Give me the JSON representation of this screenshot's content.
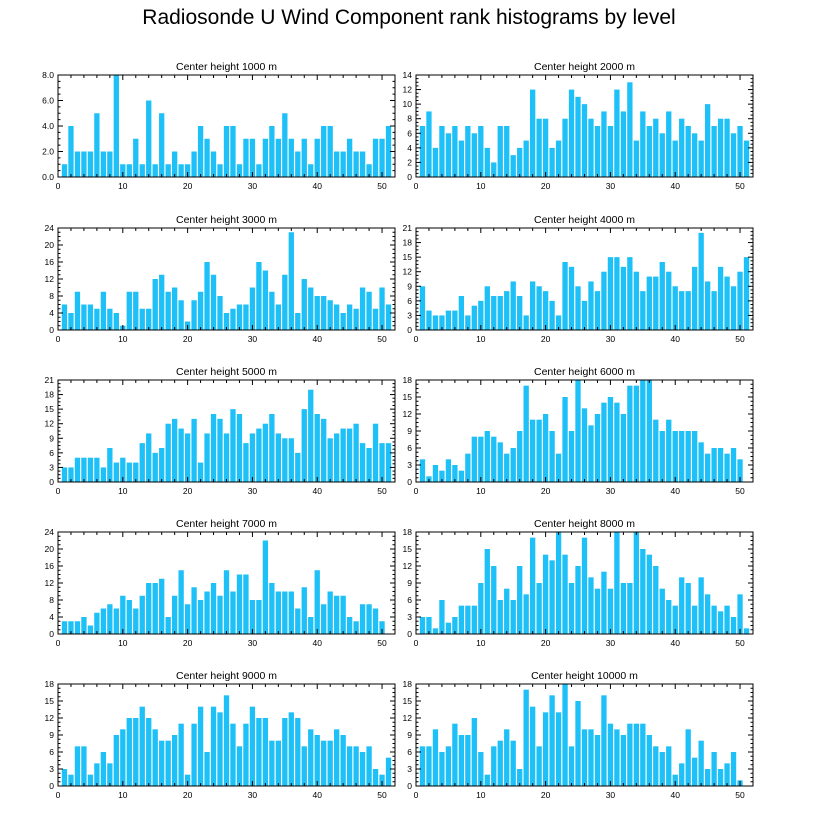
{
  "figure": {
    "title": "Radiosonde U Wind Component rank histograms by level"
  },
  "colors": {
    "bar": "#1EC0F8",
    "axis": "#000000",
    "background": "#FFFFFF"
  },
  "chart_data": [
    {
      "type": "bar",
      "title": "Center height 1000 m",
      "xlim": [
        0,
        52
      ],
      "ylim": [
        0,
        8
      ],
      "xticks": [
        0,
        10,
        20,
        30,
        40,
        50
      ],
      "yticks": [
        0,
        2,
        4,
        6,
        8
      ],
      "ytick_labels": [
        "0.0",
        "2.0",
        "4.0",
        "6.0",
        "8.0"
      ],
      "x_start": 1,
      "values": [
        1,
        4,
        2,
        2,
        2,
        5,
        2,
        2,
        8,
        1,
        1,
        3,
        1,
        6,
        1,
        5,
        1,
        2,
        1,
        1,
        2,
        4,
        3,
        2,
        1,
        4,
        4,
        1,
        3,
        3,
        1,
        3,
        4,
        3,
        5,
        3,
        2,
        3,
        1,
        3,
        4,
        4,
        2,
        2,
        3,
        2,
        2,
        1,
        3,
        3,
        4
      ]
    },
    {
      "type": "bar",
      "title": "Center height 2000 m",
      "xlim": [
        0,
        52
      ],
      "ylim": [
        0,
        14
      ],
      "xticks": [
        0,
        10,
        20,
        30,
        40,
        50
      ],
      "yticks": [
        0,
        2,
        4,
        6,
        8,
        10,
        12,
        14
      ],
      "ytick_labels": [
        "0",
        "2",
        "4",
        "6",
        "8",
        "10",
        "12",
        "14"
      ],
      "x_start": 1,
      "values": [
        7,
        9,
        4,
        7,
        6,
        7,
        5,
        7,
        6,
        7,
        4,
        2,
        7,
        7,
        3,
        4,
        5,
        12,
        8,
        8,
        4,
        5,
        8,
        12,
        11,
        10,
        8,
        7,
        9,
        7,
        12,
        9,
        13,
        5,
        9,
        7,
        8,
        6,
        9,
        5,
        8,
        7,
        6,
        5,
        10,
        7,
        8,
        8,
        6,
        7,
        5
      ]
    },
    {
      "type": "bar",
      "title": "Center height 3000 m",
      "xlim": [
        0,
        52
      ],
      "ylim": [
        0,
        24
      ],
      "xticks": [
        0,
        10,
        20,
        30,
        40,
        50
      ],
      "yticks": [
        0,
        4,
        8,
        12,
        16,
        20,
        24
      ],
      "ytick_labels": [
        "0",
        "4",
        "8",
        "12",
        "16",
        "20",
        "24"
      ],
      "x_start": 1,
      "values": [
        6,
        4,
        9,
        6,
        6,
        5,
        9,
        5,
        4,
        1,
        9,
        9,
        5,
        5,
        12,
        13,
        9,
        10,
        7,
        2,
        7,
        9,
        16,
        13,
        8,
        4,
        5,
        6,
        6,
        10,
        16,
        14,
        9,
        6,
        13,
        23,
        4,
        12,
        10,
        8,
        8,
        7,
        6,
        4,
        6,
        5,
        10,
        9,
        5,
        10,
        6
      ]
    },
    {
      "type": "bar",
      "title": "Center height 4000 m",
      "xlim": [
        0,
        52
      ],
      "ylim": [
        0,
        21
      ],
      "xticks": [
        0,
        10,
        20,
        30,
        40,
        50
      ],
      "yticks": [
        0,
        3,
        6,
        9,
        12,
        15,
        18,
        21
      ],
      "ytick_labels": [
        "0",
        "3",
        "6",
        "9",
        "12",
        "15",
        "18",
        "21"
      ],
      "x_start": 1,
      "values": [
        9,
        4,
        3,
        3,
        4,
        4,
        7,
        3,
        5,
        6,
        9,
        7,
        7,
        8,
        10,
        7,
        3,
        10,
        9,
        8,
        6,
        3,
        14,
        13,
        9,
        6,
        10,
        8,
        12,
        15,
        15,
        13,
        15,
        12,
        8,
        11,
        11,
        14,
        12,
        9,
        8,
        8,
        13,
        20,
        10,
        8,
        13,
        11,
        9,
        12,
        15
      ]
    },
    {
      "type": "bar",
      "title": "Center height 5000 m",
      "xlim": [
        0,
        52
      ],
      "ylim": [
        0,
        21
      ],
      "xticks": [
        0,
        10,
        20,
        30,
        40,
        50
      ],
      "yticks": [
        0,
        3,
        6,
        9,
        12,
        15,
        18,
        21
      ],
      "ytick_labels": [
        "0",
        "3",
        "6",
        "9",
        "12",
        "15",
        "18",
        "21"
      ],
      "x_start": 1,
      "values": [
        3,
        3,
        5,
        5,
        5,
        5,
        3,
        7,
        4,
        5,
        4,
        4,
        8,
        10,
        6,
        7,
        12,
        13,
        11,
        10,
        13,
        4,
        10,
        14,
        13,
        10,
        15,
        14,
        8,
        10,
        11,
        12,
        14,
        10,
        9,
        9,
        6,
        15,
        19,
        14,
        13,
        9,
        10,
        11,
        11,
        12,
        8,
        7,
        12,
        8,
        8
      ]
    },
    {
      "type": "bar",
      "title": "Center height 6000 m",
      "xlim": [
        0,
        52
      ],
      "ylim": [
        0,
        18
      ],
      "xticks": [
        0,
        10,
        20,
        30,
        40,
        50
      ],
      "yticks": [
        0,
        3,
        6,
        9,
        12,
        15,
        18
      ],
      "ytick_labels": [
        "0",
        "3",
        "6",
        "9",
        "12",
        "15",
        "18"
      ],
      "x_start": 1,
      "values": [
        4,
        1,
        3,
        2,
        4,
        3,
        2,
        5,
        8,
        8,
        9,
        8,
        7,
        5,
        6,
        9,
        17,
        11,
        11,
        12,
        9,
        5,
        15,
        9,
        18,
        13,
        10,
        12,
        14,
        15,
        14,
        12,
        17,
        17,
        18,
        18,
        11,
        9,
        11,
        9,
        9,
        9,
        9,
        7,
        5,
        6,
        6,
        5,
        6,
        4
      ]
    },
    {
      "type": "bar",
      "title": "Center height 7000 m",
      "xlim": [
        0,
        52
      ],
      "ylim": [
        0,
        24
      ],
      "xticks": [
        0,
        10,
        20,
        30,
        40,
        50
      ],
      "yticks": [
        0,
        4,
        8,
        12,
        16,
        20,
        24
      ],
      "ytick_labels": [
        "0",
        "4",
        "8",
        "12",
        "16",
        "20",
        "24"
      ],
      "x_start": 1,
      "values": [
        3,
        3,
        3,
        4,
        2,
        5,
        6,
        7,
        6,
        9,
        8,
        6,
        9,
        12,
        12,
        13,
        4,
        9,
        15,
        7,
        11,
        8,
        10,
        12,
        9,
        15,
        10,
        14,
        14,
        8,
        8,
        22,
        12,
        10,
        10,
        10,
        6,
        11,
        4,
        15,
        7,
        10,
        9,
        9,
        4,
        3,
        7,
        7,
        6,
        3
      ]
    },
    {
      "type": "bar",
      "title": "Center height 8000 m",
      "xlim": [
        0,
        52
      ],
      "ylim": [
        0,
        18
      ],
      "xticks": [
        0,
        10,
        20,
        30,
        40,
        50
      ],
      "yticks": [
        0,
        3,
        6,
        9,
        12,
        15,
        18
      ],
      "ytick_labels": [
        "0",
        "3",
        "6",
        "9",
        "12",
        "15",
        "18"
      ],
      "x_start": 1,
      "values": [
        3,
        3,
        1,
        6,
        2,
        3,
        5,
        5,
        5,
        9,
        15,
        12,
        6,
        8,
        6,
        12,
        7,
        17,
        9,
        14,
        13,
        18,
        14,
        9,
        12,
        17,
        10,
        8,
        11,
        8,
        18,
        9,
        9,
        18,
        15,
        14,
        12,
        8,
        6,
        5,
        10,
        9,
        5,
        10,
        7,
        5,
        4,
        5,
        3,
        7,
        1
      ]
    },
    {
      "type": "bar",
      "title": "Center height 9000 m",
      "xlim": [
        0,
        52
      ],
      "ylim": [
        0,
        18
      ],
      "xticks": [
        0,
        10,
        20,
        30,
        40,
        50
      ],
      "yticks": [
        0,
        3,
        6,
        9,
        12,
        15,
        18
      ],
      "ytick_labels": [
        "0",
        "3",
        "6",
        "9",
        "12",
        "15",
        "18"
      ],
      "x_start": 1,
      "values": [
        3,
        2,
        7,
        7,
        2,
        4,
        6,
        4,
        9,
        10,
        12,
        12,
        14,
        12,
        10,
        8,
        8,
        9,
        11,
        2,
        11,
        14,
        6,
        14,
        13,
        16,
        11,
        7,
        11,
        14,
        12,
        12,
        8,
        8,
        12,
        13,
        12,
        7,
        10,
        9,
        8,
        8,
        10,
        9,
        7,
        7,
        6,
        7,
        3,
        2,
        5
      ]
    },
    {
      "type": "bar",
      "title": "Center height 10000 m",
      "xlim": [
        0,
        52
      ],
      "ylim": [
        0,
        18
      ],
      "xticks": [
        0,
        10,
        20,
        30,
        40,
        50
      ],
      "yticks": [
        0,
        3,
        6,
        9,
        12,
        15,
        18
      ],
      "ytick_labels": [
        "0",
        "3",
        "6",
        "9",
        "12",
        "15",
        "18"
      ],
      "x_start": 1,
      "values": [
        7,
        7,
        10,
        6,
        7,
        11,
        9,
        9,
        12,
        6,
        2,
        7,
        8,
        10,
        8,
        3,
        17,
        14,
        7,
        13,
        16,
        13,
        18,
        7,
        15,
        10,
        10,
        9,
        16,
        11,
        10,
        9,
        11,
        11,
        11,
        9,
        7,
        6,
        7,
        2,
        4,
        10,
        5,
        8,
        3,
        6,
        3,
        4,
        6,
        1,
        0
      ]
    }
  ]
}
